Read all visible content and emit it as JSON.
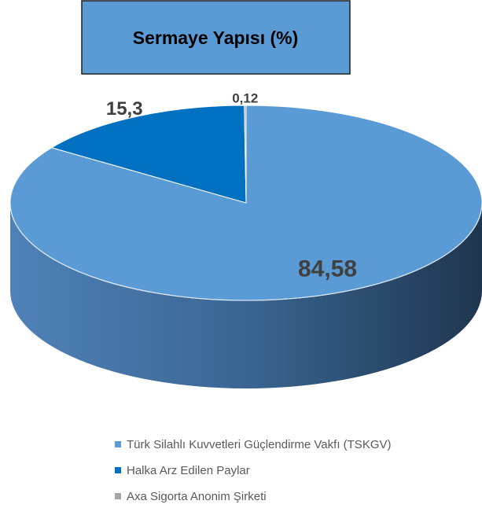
{
  "chart_data": {
    "type": "pie",
    "title": "Sermaye Yapısı (%)",
    "categories": [
      "Türk Silahlı Kuvvetleri Güçlendirme Vakfı (TSKGV)",
      "Halka Arz Edilen Paylar",
      "Axa Sigorta Anonim Şirketi"
    ],
    "values": [
      84.58,
      15.3,
      0.12
    ],
    "value_labels": [
      "84,58",
      "15,3",
      "0,12"
    ],
    "colors": [
      "#5b9bd5",
      "#0070c0",
      "#a5a5a5"
    ],
    "legend": "bottom"
  }
}
